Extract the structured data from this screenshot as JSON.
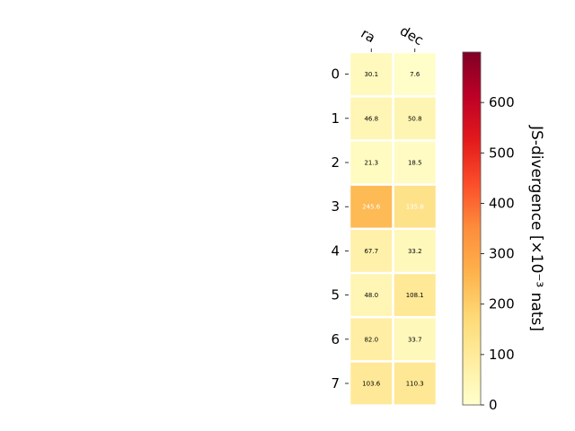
{
  "chart_data": {
    "type": "heatmap",
    "columns": [
      "ra",
      "dec"
    ],
    "rows": [
      "0",
      "1",
      "2",
      "3",
      "4",
      "5",
      "6",
      "7"
    ],
    "values": [
      [
        30.1,
        7.6
      ],
      [
        46.8,
        50.8
      ],
      [
        21.3,
        18.5
      ],
      [
        245.6,
        135.8
      ],
      [
        67.7,
        33.2
      ],
      [
        48.0,
        108.1
      ],
      [
        82.0,
        33.7
      ],
      [
        103.6,
        110.3
      ]
    ],
    "value_labels": [
      [
        "30.1",
        "7.6"
      ],
      [
        "46.8",
        "50.8"
      ],
      [
        "21.3",
        "18.5"
      ],
      [
        "245.6",
        "135.8"
      ],
      [
        "67.7",
        "33.2"
      ],
      [
        "48.0",
        "108.1"
      ],
      [
        "82.0",
        "33.7"
      ],
      [
        "103.6",
        "110.3"
      ]
    ],
    "colorbar": {
      "label": "JS-divergence [×10⁻³ nats]",
      "range": [
        0,
        700
      ],
      "ticks": [
        0,
        100,
        200,
        300,
        400,
        500,
        600
      ],
      "tick_labels": [
        "0",
        "100",
        "200",
        "300",
        "400",
        "500",
        "600"
      ],
      "colormap": "YlOrRd",
      "stops": [
        "#ffffcc",
        "#ffeda0",
        "#fed976",
        "#feb24c",
        "#fd8d3c",
        "#fc4e2a",
        "#e31a1c",
        "#bd0026",
        "#800026"
      ]
    },
    "annotation_colors": {
      "dark_text": "#000000",
      "light_text": "#ffffff"
    },
    "grid": false
  }
}
